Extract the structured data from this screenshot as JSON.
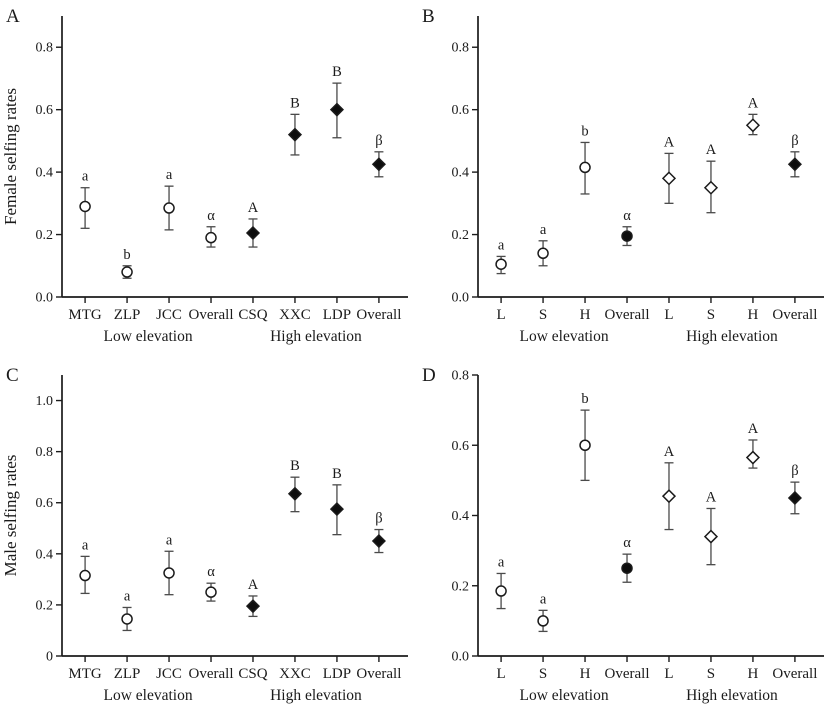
{
  "figure": {
    "background": "#ffffff",
    "ink_color": "#1b1b1b",
    "error_bar_color": "#4a4a4a",
    "marker_fill_color": "#0d0d0d",
    "marker_open_fill": "#ffffff"
  },
  "chart_data": [
    {
      "type": "scatter",
      "panel_label": "A",
      "title": "",
      "xlabel": "",
      "ylabel": "Female selfing rates",
      "ylim": [
        0,
        0.9
      ],
      "yticks": [
        0.0,
        0.2,
        0.4,
        0.6,
        0.8
      ],
      "ytick_labels": [
        "0.0",
        "0.2",
        "0.4",
        "0.6",
        "0.8"
      ],
      "grid": "off",
      "legend": "none",
      "categories": [
        "MTG",
        "ZLP",
        "JCC",
        "Overall",
        "CSQ",
        "XXC",
        "LDP",
        "Overall"
      ],
      "group_labels": [
        {
          "label": "Low elevation",
          "from": 0,
          "to": 3
        },
        {
          "label": "High elevation",
          "from": 4,
          "to": 7
        }
      ],
      "points": [
        {
          "value": 0.29,
          "err_low": 0.22,
          "err_high": 0.35,
          "letter": "a",
          "marker": "circle-open"
        },
        {
          "value": 0.08,
          "err_low": 0.06,
          "err_high": 0.1,
          "letter": "b",
          "marker": "circle-open"
        },
        {
          "value": 0.285,
          "err_low": 0.215,
          "err_high": 0.355,
          "letter": "a",
          "marker": "circle-open"
        },
        {
          "value": 0.19,
          "err_low": 0.16,
          "err_high": 0.225,
          "letter": "α",
          "marker": "circle-open"
        },
        {
          "value": 0.205,
          "err_low": 0.16,
          "err_high": 0.25,
          "letter": "A",
          "marker": "diamond-filled"
        },
        {
          "value": 0.52,
          "err_low": 0.455,
          "err_high": 0.585,
          "letter": "B",
          "marker": "diamond-filled"
        },
        {
          "value": 0.6,
          "err_low": 0.51,
          "err_high": 0.685,
          "letter": "B",
          "marker": "diamond-filled"
        },
        {
          "value": 0.425,
          "err_low": 0.385,
          "err_high": 0.465,
          "letter": "β",
          "marker": "diamond-filled"
        }
      ]
    },
    {
      "type": "scatter",
      "panel_label": "B",
      "title": "",
      "xlabel": "",
      "ylabel": "",
      "ylim": [
        0,
        0.9
      ],
      "yticks": [
        0.0,
        0.2,
        0.4,
        0.6,
        0.8
      ],
      "ytick_labels": [
        "0.0",
        "0.2",
        "0.4",
        "0.6",
        "0.8"
      ],
      "grid": "off",
      "legend": "none",
      "categories": [
        "L",
        "S",
        "H",
        "Overall",
        "L",
        "S",
        "H",
        "Overall"
      ],
      "group_labels": [
        {
          "label": "Low elevation",
          "from": 0,
          "to": 3
        },
        {
          "label": "High elevation",
          "from": 4,
          "to": 7
        }
      ],
      "points": [
        {
          "value": 0.105,
          "err_low": 0.075,
          "err_high": 0.13,
          "letter": "a",
          "marker": "circle-open"
        },
        {
          "value": 0.14,
          "err_low": 0.1,
          "err_high": 0.18,
          "letter": "a",
          "marker": "circle-open"
        },
        {
          "value": 0.415,
          "err_low": 0.33,
          "err_high": 0.495,
          "letter": "b",
          "marker": "circle-open"
        },
        {
          "value": 0.195,
          "err_low": 0.165,
          "err_high": 0.225,
          "letter": "α",
          "marker": "circle-filled"
        },
        {
          "value": 0.38,
          "err_low": 0.3,
          "err_high": 0.46,
          "letter": "A",
          "marker": "diamond-open"
        },
        {
          "value": 0.35,
          "err_low": 0.27,
          "err_high": 0.435,
          "letter": "A",
          "marker": "diamond-open"
        },
        {
          "value": 0.55,
          "err_low": 0.52,
          "err_high": 0.585,
          "letter": "A",
          "marker": "diamond-open"
        },
        {
          "value": 0.425,
          "err_low": 0.385,
          "err_high": 0.465,
          "letter": "β",
          "marker": "diamond-filled"
        }
      ]
    },
    {
      "type": "scatter",
      "panel_label": "C",
      "title": "",
      "xlabel": "",
      "ylabel": "Male selfing rates",
      "ylim": [
        0,
        1.1
      ],
      "yticks": [
        0,
        0.2,
        0.4,
        0.6,
        0.8,
        1.0
      ],
      "ytick_labels": [
        "0",
        "0.2",
        "0.4",
        "0.6",
        "0.8",
        "1.0"
      ],
      "grid": "off",
      "legend": "none",
      "categories": [
        "MTG",
        "ZLP",
        "JCC",
        "Overall",
        "CSQ",
        "XXC",
        "LDP",
        "Overall"
      ],
      "group_labels": [
        {
          "label": "Low elevation",
          "from": 0,
          "to": 3
        },
        {
          "label": "High elevation",
          "from": 4,
          "to": 7
        }
      ],
      "points": [
        {
          "value": 0.315,
          "err_low": 0.245,
          "err_high": 0.39,
          "letter": "a",
          "marker": "circle-open"
        },
        {
          "value": 0.145,
          "err_low": 0.1,
          "err_high": 0.19,
          "letter": "a",
          "marker": "circle-open"
        },
        {
          "value": 0.325,
          "err_low": 0.24,
          "err_high": 0.41,
          "letter": "a",
          "marker": "circle-open"
        },
        {
          "value": 0.25,
          "err_low": 0.215,
          "err_high": 0.285,
          "letter": "α",
          "marker": "circle-open"
        },
        {
          "value": 0.195,
          "err_low": 0.155,
          "err_high": 0.235,
          "letter": "A",
          "marker": "diamond-filled"
        },
        {
          "value": 0.635,
          "err_low": 0.565,
          "err_high": 0.7,
          "letter": "B",
          "marker": "diamond-filled"
        },
        {
          "value": 0.575,
          "err_low": 0.475,
          "err_high": 0.67,
          "letter": "B",
          "marker": "diamond-filled"
        },
        {
          "value": 0.45,
          "err_low": 0.405,
          "err_high": 0.495,
          "letter": "β",
          "marker": "diamond-filled"
        }
      ]
    },
    {
      "type": "scatter",
      "panel_label": "D",
      "title": "",
      "xlabel": "",
      "ylabel": "",
      "ylim": [
        0,
        0.8
      ],
      "yticks": [
        0.0,
        0.2,
        0.4,
        0.6,
        0.8
      ],
      "ytick_labels": [
        "0.0",
        "0.2",
        "0.4",
        "0.6",
        "0.8"
      ],
      "grid": "off",
      "legend": "none",
      "categories": [
        "L",
        "S",
        "H",
        "Overall",
        "L",
        "S",
        "H",
        "Overall"
      ],
      "group_labels": [
        {
          "label": "Low elevation",
          "from": 0,
          "to": 3
        },
        {
          "label": "High elevation",
          "from": 4,
          "to": 7
        }
      ],
      "points": [
        {
          "value": 0.185,
          "err_low": 0.135,
          "err_high": 0.235,
          "letter": "a",
          "marker": "circle-open"
        },
        {
          "value": 0.1,
          "err_low": 0.07,
          "err_high": 0.13,
          "letter": "a",
          "marker": "circle-open"
        },
        {
          "value": 0.6,
          "err_low": 0.5,
          "err_high": 0.7,
          "letter": "b",
          "marker": "circle-open"
        },
        {
          "value": 0.25,
          "err_low": 0.21,
          "err_high": 0.29,
          "letter": "α",
          "marker": "circle-filled"
        },
        {
          "value": 0.455,
          "err_low": 0.36,
          "err_high": 0.55,
          "letter": "A",
          "marker": "diamond-open"
        },
        {
          "value": 0.34,
          "err_low": 0.26,
          "err_high": 0.42,
          "letter": "A",
          "marker": "diamond-open"
        },
        {
          "value": 0.565,
          "err_low": 0.535,
          "err_high": 0.615,
          "letter": "A",
          "marker": "diamond-open"
        },
        {
          "value": 0.45,
          "err_low": 0.405,
          "err_high": 0.495,
          "letter": "β",
          "marker": "diamond-filled"
        }
      ]
    }
  ]
}
